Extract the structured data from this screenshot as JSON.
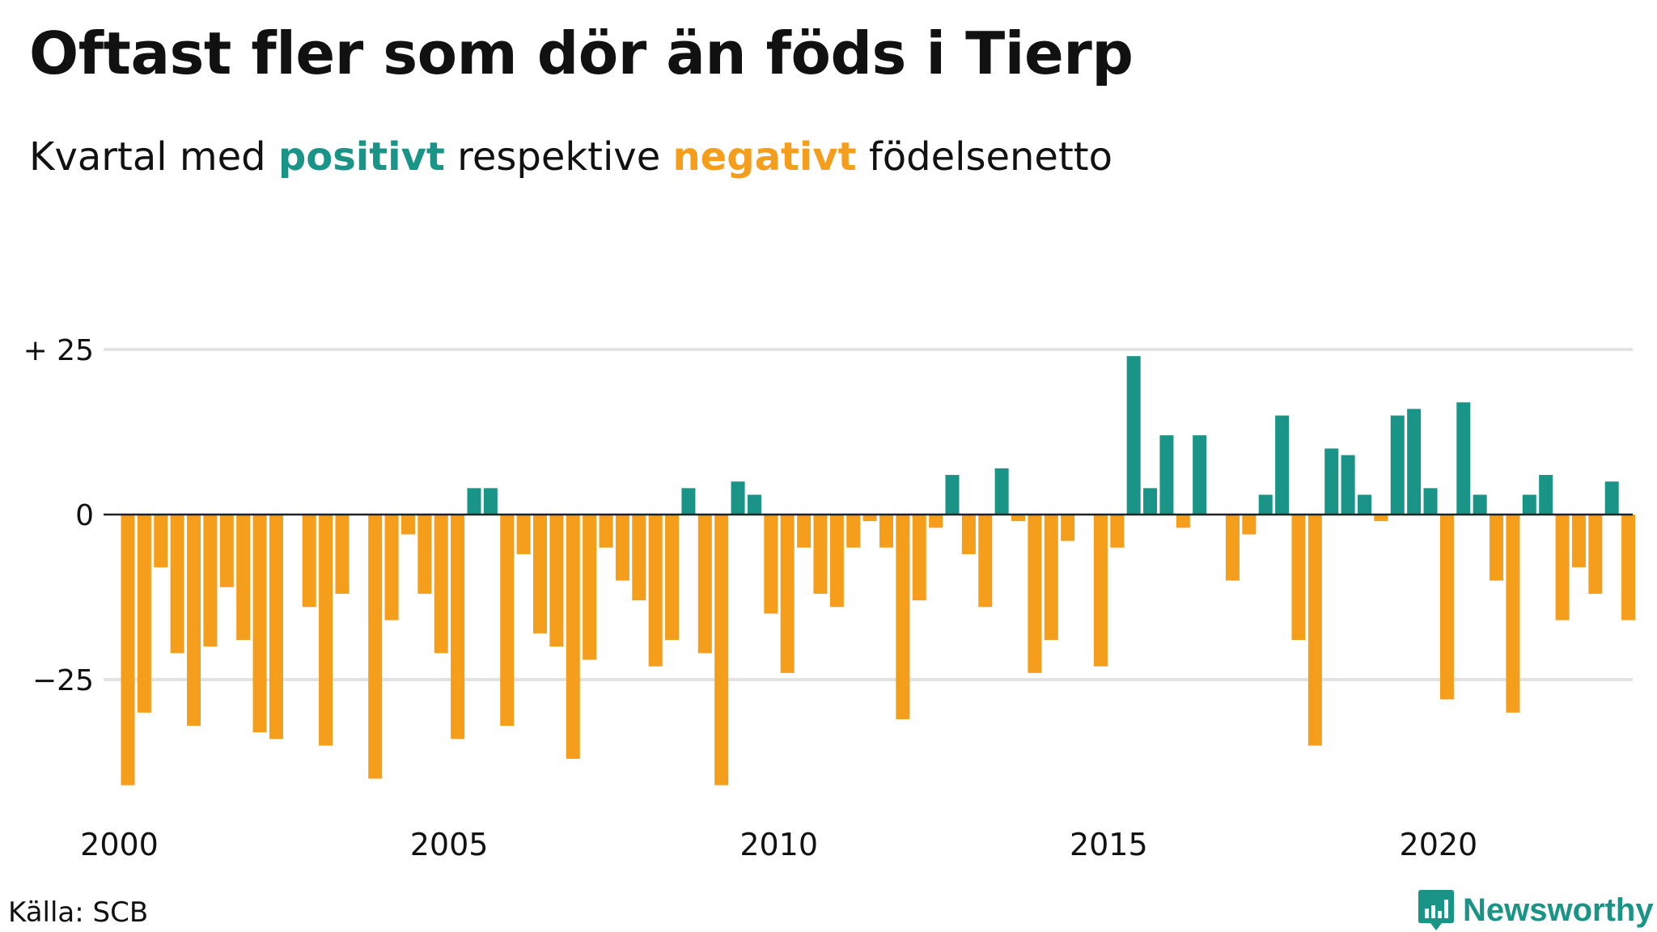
{
  "title": "Oftast fler som dör än föds i Tierp",
  "subtitle": {
    "prefix": "Kvartal med ",
    "positive_word": "positivt",
    "middle": " respektive ",
    "negative_word": "negativt",
    "suffix": " födelsenetto"
  },
  "source": "Källa: SCB",
  "brand": "Newsworthy",
  "colors": {
    "positive": "#1a9486",
    "negative": "#f59e1c",
    "grid": "#e2e2e2",
    "zero_line": "#222222"
  },
  "chart_data": {
    "type": "bar",
    "title": "Oftast fler som dör än föds i Tierp",
    "subtitle": "Kvartal med positivt respektive negativt födelsenetto",
    "xlabel": "",
    "ylabel": "",
    "ylim": [
      -42,
      28
    ],
    "grid": true,
    "y_ticks": [
      {
        "value": 25,
        "label": "+ 25"
      },
      {
        "value": 0,
        "label": "0"
      },
      {
        "value": -25,
        "label": "−25"
      }
    ],
    "x_ticks": [
      "2000",
      "2005",
      "2010",
      "2015",
      "2020"
    ],
    "start_year": 2000,
    "categories": [
      "2000K1",
      "2000K2",
      "2000K3",
      "2000K4",
      "2001K1",
      "2001K2",
      "2001K3",
      "2001K4",
      "2002K1",
      "2002K2",
      "2002K3",
      "2002K4",
      "2003K1",
      "2003K2",
      "2003K3",
      "2003K4",
      "2004K1",
      "2004K2",
      "2004K3",
      "2004K4",
      "2005K1",
      "2005K2",
      "2005K3",
      "2005K4",
      "2006K1",
      "2006K2",
      "2006K3",
      "2006K4",
      "2007K1",
      "2007K2",
      "2007K3",
      "2007K4",
      "2008K1",
      "2008K2",
      "2008K3",
      "2008K4",
      "2009K1",
      "2009K2",
      "2009K3",
      "2009K4",
      "2010K1",
      "2010K2",
      "2010K3",
      "2010K4",
      "2011K1",
      "2011K2",
      "2011K3",
      "2011K4",
      "2012K1",
      "2012K2",
      "2012K3",
      "2012K4",
      "2013K1",
      "2013K2",
      "2013K3",
      "2013K4",
      "2014K1",
      "2014K2",
      "2014K3",
      "2014K4",
      "2015K1",
      "2015K2",
      "2015K3",
      "2015K4",
      "2016K1",
      "2016K2",
      "2016K3",
      "2016K4",
      "2017K1",
      "2017K2",
      "2017K3",
      "2017K4",
      "2018K1",
      "2018K2",
      "2018K3",
      "2018K4",
      "2019K1",
      "2019K2",
      "2019K3",
      "2019K4",
      "2020K1",
      "2020K2",
      "2020K3",
      "2020K4",
      "2021K1",
      "2021K2",
      "2021K3",
      "2021K4",
      "2022K1",
      "2022K2",
      "2022K3",
      "2022K4",
      "2023K1"
    ],
    "values": [
      -41,
      -30,
      -8,
      -21,
      -32,
      -20,
      -11,
      -19,
      -33,
      -34,
      0,
      -14,
      -35,
      -12,
      0,
      -40,
      -16,
      -3,
      -12,
      -21,
      -34,
      4,
      4,
      -32,
      -6,
      -18,
      -20,
      -37,
      -22,
      -5,
      -10,
      -13,
      -23,
      -19,
      4,
      -21,
      -41,
      5,
      3,
      -15,
      -24,
      -5,
      -12,
      -14,
      -5,
      -1,
      -5,
      -31,
      -13,
      -2,
      6,
      -6,
      -14,
      7,
      -1,
      -24,
      -19,
      -4,
      0,
      -23,
      -5,
      24,
      4,
      12,
      -2,
      12,
      0,
      -10,
      -3,
      3,
      15,
      -19,
      -35,
      10,
      9,
      3,
      -1,
      15,
      16,
      4,
      -28,
      17,
      3,
      -10,
      -30,
      3,
      6,
      -16,
      -8,
      -12,
      5,
      -16,
      0
    ]
  }
}
